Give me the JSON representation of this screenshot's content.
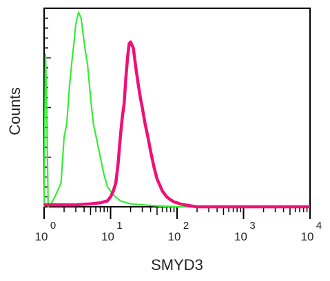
{
  "chart_data": {
    "type": "line",
    "title": "",
    "xlabel": "SMYD3",
    "ylabel": "Counts",
    "x_scale": "log",
    "xlim": [
      1,
      10000
    ],
    "ylim": [
      0,
      100
    ],
    "grid": false,
    "x_ticks": [
      {
        "base": "10",
        "exp": "0",
        "value": 1
      },
      {
        "base": "10",
        "exp": "1",
        "value": 10
      },
      {
        "base": "10",
        "exp": "2",
        "value": 100
      },
      {
        "base": "10",
        "exp": "3",
        "value": 1000
      },
      {
        "base": "10",
        "exp": "4",
        "value": 10000
      }
    ],
    "series": [
      {
        "color": "#33ee33",
        "x": [
          1.0,
          1.05,
          1.08,
          1.11,
          1.15,
          1.3,
          1.5,
          1.8,
          2.0,
          2.2,
          2.4,
          2.6,
          2.8,
          3.0,
          3.3,
          3.6,
          3.9,
          4.2,
          4.5,
          5.0,
          5.5,
          6.0,
          7.0,
          8.0,
          9.0,
          11,
          14,
          20,
          30,
          50,
          100,
          1000,
          10000
        ],
        "y": [
          0,
          77,
          62,
          38,
          0,
          2,
          6,
          12,
          35,
          42,
          60,
          72,
          82,
          92,
          98,
          95,
          86,
          78,
          72,
          55,
          42,
          36,
          25,
          16,
          10,
          6,
          3,
          1.5,
          1,
          0.5,
          0,
          0,
          0
        ]
      },
      {
        "color": "#ee1177",
        "x": [
          1.0,
          3.0,
          5.0,
          7.0,
          9.0,
          10,
          11,
          12,
          13,
          14,
          15,
          16,
          17,
          18,
          19,
          20,
          22,
          24,
          26,
          28,
          30,
          33,
          36,
          40,
          45,
          50,
          60,
          70,
          80,
          90,
          100,
          110,
          130,
          160,
          200,
          1000,
          10000
        ],
        "y": [
          1,
          1,
          1.5,
          2,
          3,
          5,
          8,
          12,
          22,
          35,
          45,
          52,
          65,
          75,
          82,
          83,
          80,
          70,
          62,
          55,
          50,
          42,
          36,
          28,
          20,
          14,
          8,
          5,
          3.5,
          2.5,
          2,
          1.5,
          1,
          0.5,
          0,
          0,
          0
        ]
      }
    ]
  }
}
